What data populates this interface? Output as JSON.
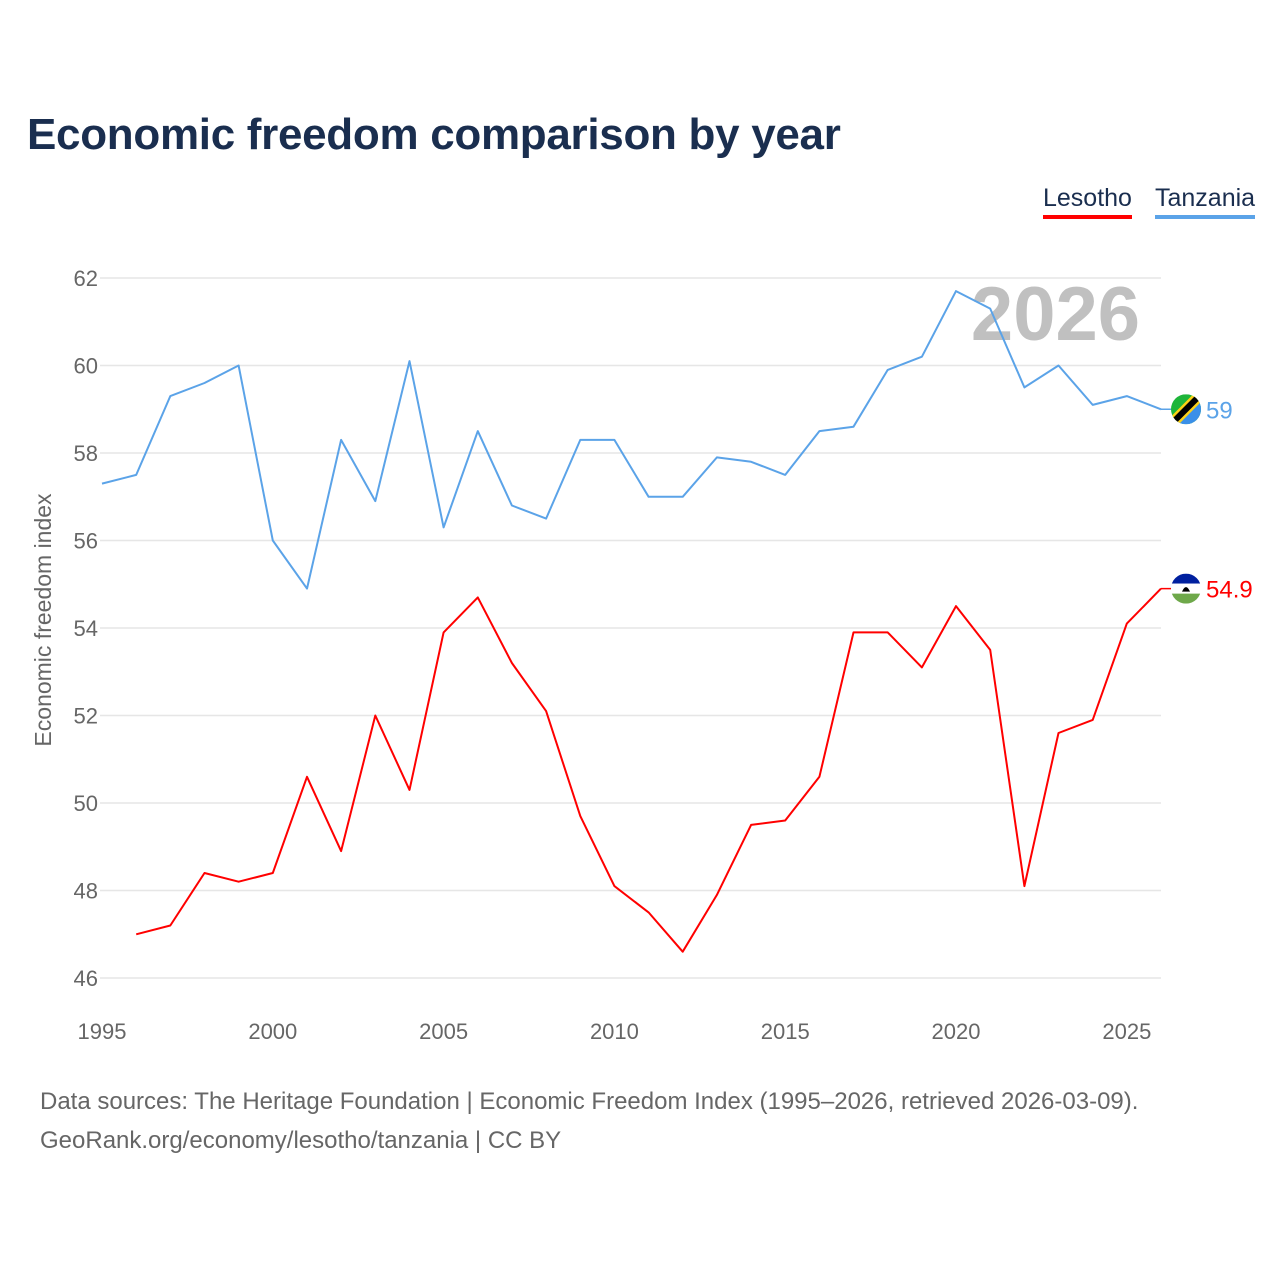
{
  "chart_data": {
    "type": "line",
    "title": "Economic freedom comparison by year",
    "xlabel": "",
    "ylabel": "Economic freedom index",
    "xlim": [
      1995,
      2026
    ],
    "ylim": [
      46,
      62
    ],
    "yticks": [
      46,
      48,
      50,
      52,
      54,
      56,
      58,
      60,
      62
    ],
    "xticks": [
      1995,
      2000,
      2005,
      2010,
      2015,
      2020,
      2025
    ],
    "grid": true,
    "legend_placement": "top-right",
    "watermark_year": "2026",
    "series": [
      {
        "name": "Lesotho",
        "color": "#ff0000",
        "end_label": "54.9",
        "x": [
          1996,
          1997,
          1998,
          1999,
          2000,
          2001,
          2002,
          2003,
          2004,
          2005,
          2006,
          2007,
          2008,
          2009,
          2010,
          2011,
          2012,
          2013,
          2014,
          2015,
          2016,
          2017,
          2018,
          2019,
          2020,
          2021,
          2022,
          2023,
          2024,
          2025,
          2026
        ],
        "values": [
          47.0,
          47.2,
          48.4,
          48.2,
          48.4,
          50.6,
          48.9,
          52.0,
          50.3,
          53.9,
          54.7,
          53.2,
          52.1,
          49.7,
          48.1,
          47.5,
          46.6,
          47.9,
          49.5,
          49.6,
          50.6,
          53.9,
          53.9,
          53.1,
          54.5,
          53.5,
          48.1,
          51.6,
          51.9,
          54.1,
          54.9
        ]
      },
      {
        "name": "Tanzania",
        "color": "#5ba3e8",
        "end_label": "59",
        "x": [
          1995,
          1996,
          1997,
          1998,
          1999,
          2000,
          2001,
          2002,
          2003,
          2004,
          2005,
          2006,
          2007,
          2008,
          2009,
          2010,
          2011,
          2012,
          2013,
          2014,
          2015,
          2016,
          2017,
          2018,
          2019,
          2020,
          2021,
          2022,
          2023,
          2024,
          2025,
          2026
        ],
        "values": [
          57.3,
          57.5,
          59.3,
          59.6,
          60.0,
          56.0,
          54.9,
          58.3,
          56.9,
          60.1,
          56.3,
          58.5,
          56.8,
          56.5,
          58.3,
          58.3,
          57.0,
          57.0,
          57.9,
          57.8,
          57.5,
          58.5,
          58.6,
          59.9,
          60.2,
          61.7,
          61.3,
          59.5,
          60.0,
          59.1,
          59.3,
          59.0
        ]
      }
    ]
  },
  "footer": {
    "line1": "Data sources: The Heritage Foundation | Economic Freedom Index (1995–2026, retrieved 2026-03-09).",
    "line2": "GeoRank.org/economy/lesotho/tanzania | CC BY"
  }
}
